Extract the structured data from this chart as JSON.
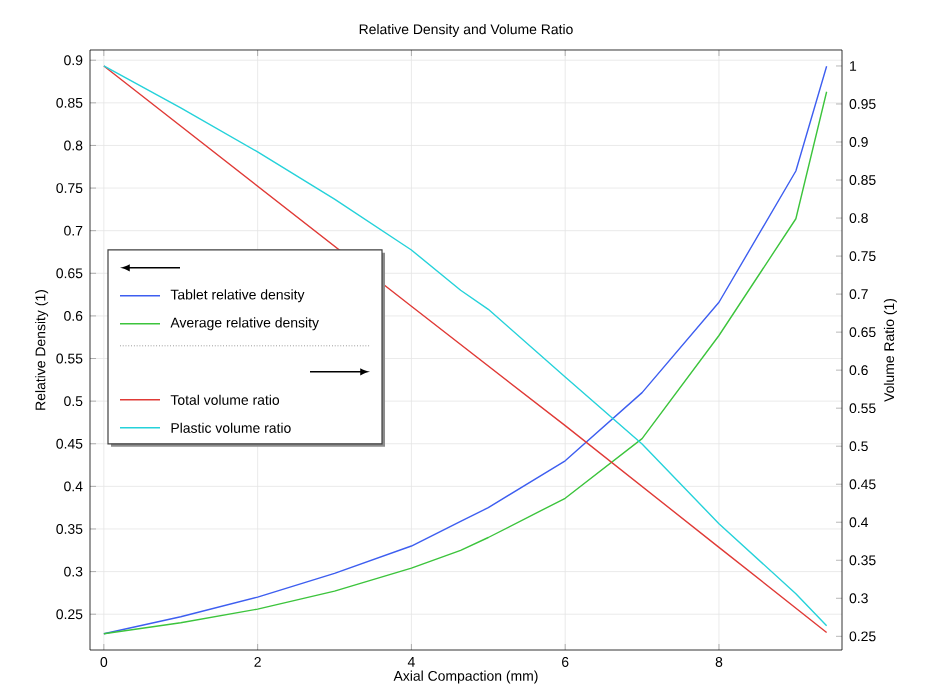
{
  "chart_data": {
    "type": "line",
    "title": "Relative Density and Volume Ratio",
    "xlabel": "Axial Compaction (mm)",
    "ylabel": "Relative Density (1)",
    "y2label": "Volume Ratio (1)",
    "xlim": [
      -0.18,
      9.6
    ],
    "xticks": [
      0,
      2,
      4,
      6,
      8
    ],
    "ylim": [
      0.208,
      0.912
    ],
    "yticks": [
      0.25,
      0.3,
      0.35,
      0.4,
      0.45,
      0.5,
      0.55,
      0.6,
      0.65,
      0.7,
      0.75,
      0.8,
      0.85,
      0.9
    ],
    "y2lim": [
      0.232,
      1.021
    ],
    "y2ticks": [
      0.25,
      0.3,
      0.35,
      0.4,
      0.45,
      0.5,
      0.55,
      0.6,
      0.65,
      0.7,
      0.75,
      0.8,
      0.85,
      0.9,
      0.95,
      1
    ],
    "grid": true,
    "legend": "left",
    "marker": "none",
    "line_style": "solid",
    "series": [
      {
        "name": "Tablet relative density",
        "color": "#3d5ef0",
        "x": [
          0,
          1,
          2,
          3,
          4,
          4.64,
          5,
          6,
          7,
          8,
          9,
          9.4
        ],
        "values": [
          0.227,
          0.247,
          0.27,
          0.298,
          0.33,
          0.359,
          0.375,
          0.43,
          0.51,
          0.616,
          0.77,
          0.893
        ]
      },
      {
        "name": "Average relative density",
        "color": "#3cc43c",
        "x": [
          0,
          1,
          2,
          3,
          4,
          4.64,
          5,
          6,
          7,
          8,
          9,
          9.4
        ],
        "values": [
          0.227,
          0.24,
          0.256,
          0.277,
          0.304,
          0.325,
          0.34,
          0.386,
          0.456,
          0.577,
          0.714,
          0.863
        ]
      },
      {
        "name": "Total volume ratio",
        "color": "#e03a36",
        "axis": "y2",
        "x": [
          0,
          2,
          4,
          6,
          8,
          9.4
        ],
        "values": [
          1.0,
          0.842,
          0.684,
          0.527,
          0.367,
          0.255
        ]
      },
      {
        "name": "Plastic volume ratio",
        "color": "#25d2da",
        "axis": "y2",
        "x": [
          0,
          1,
          2,
          3,
          4,
          4.64,
          5,
          6,
          7,
          8,
          9,
          9.4
        ],
        "values": [
          1.0,
          0.945,
          0.887,
          0.825,
          0.758,
          0.705,
          0.68,
          0.591,
          0.503,
          0.398,
          0.306,
          0.264
        ]
      }
    ]
  }
}
